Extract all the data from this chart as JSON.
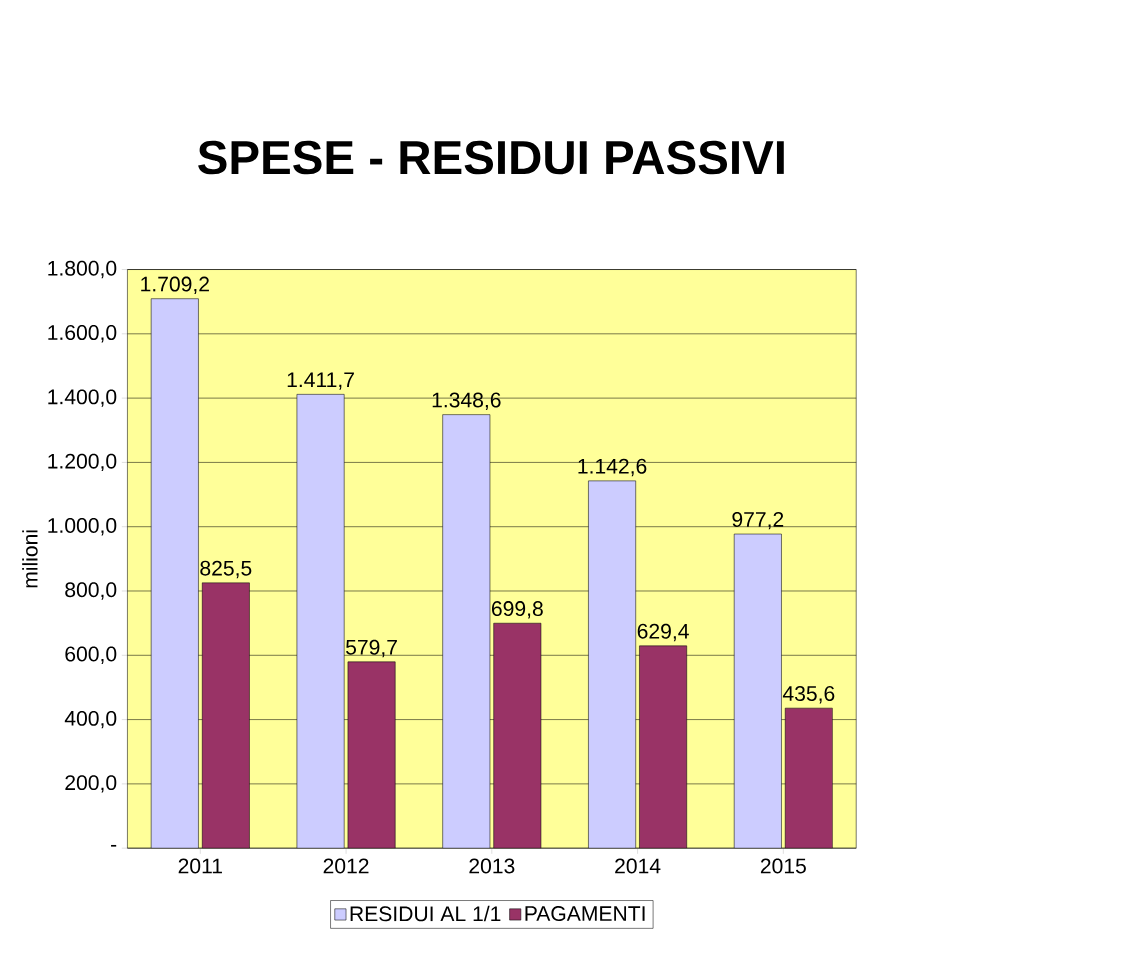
{
  "chart_data": {
    "type": "bar",
    "title": "SPESE - RESIDUI PASSIVI",
    "ylabel": "milioni",
    "categories": [
      "2011",
      "2012",
      "2013",
      "2014",
      "2015"
    ],
    "series": [
      {
        "name": "RESIDUI AL 1/1",
        "color": "#ccccff",
        "values": [
          1709.2,
          1411.7,
          1348.6,
          1142.6,
          977.2
        ],
        "value_labels": [
          "1.709,2",
          "1.411,7",
          "1.348,6",
          "1.142,6",
          "977,2"
        ]
      },
      {
        "name": "PAGAMENTI",
        "color": "#993366",
        "values": [
          825.5,
          579.7,
          699.8,
          629.4,
          435.6
        ],
        "value_labels": [
          "825,5",
          "579,7",
          "699,8",
          "629,4",
          "435,6"
        ]
      }
    ],
    "ylim": [
      0,
      1800
    ],
    "yticks": [
      {
        "value": 0,
        "label": "-"
      },
      {
        "value": 200,
        "label": "200,0"
      },
      {
        "value": 400,
        "label": "400,0"
      },
      {
        "value": 600,
        "label": "600,0"
      },
      {
        "value": 800,
        "label": "800,0"
      },
      {
        "value": 1000,
        "label": "1.000,0"
      },
      {
        "value": 1200,
        "label": "1.200,0"
      },
      {
        "value": 1400,
        "label": "1.400,0"
      },
      {
        "value": 1600,
        "label": "1.600,0"
      },
      {
        "value": 1800,
        "label": "1.800,0"
      }
    ],
    "grid": "y",
    "legend": "bottom"
  }
}
